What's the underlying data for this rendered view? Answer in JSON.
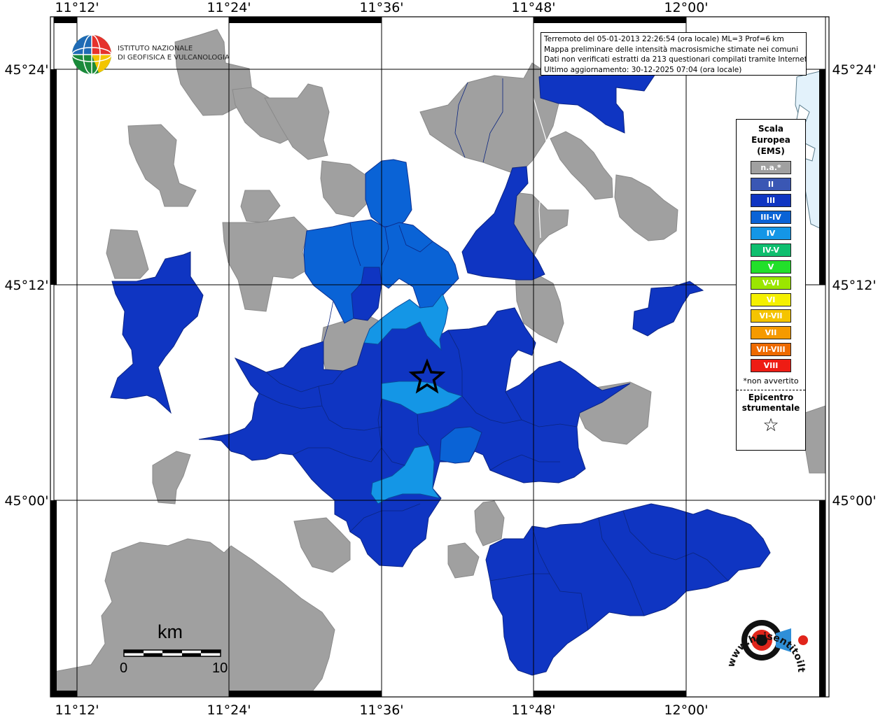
{
  "info": {
    "line1": "Terremoto del 05-01-2013 22:26:54 (ora locale) ML=3 Prof=6 km",
    "line2": "Mappa preliminare delle intensità macrosismiche stimate nei comuni",
    "line3": "Dati non verificati estratti da 213 questionari compilati tramite Internet.",
    "line4": "Ultimo aggiornamento: 30-12-2025 07:04 (ora locale)"
  },
  "logo": {
    "line1": "ISTITUTO NAZIONALE",
    "line2": "DI GEOFISICA E VULCANOLOGIA"
  },
  "axes": {
    "lon_labels": [
      "11°12'",
      "11°24'",
      "11°36'",
      "11°48'",
      "12°00'"
    ],
    "lat_labels": [
      "45°24'",
      "45°12'",
      "45°00'"
    ]
  },
  "legend": {
    "title_line1": "Scala",
    "title_line2": "Europea",
    "title_line3": "(EMS)",
    "items": [
      {
        "label": "n.a.*",
        "color": "#a0a0a0"
      },
      {
        "label": "II",
        "color": "#3a57b4"
      },
      {
        "label": "III",
        "color": "#0f35c2"
      },
      {
        "label": "III-IV",
        "color": "#0a63d6"
      },
      {
        "label": "IV",
        "color": "#1496e6"
      },
      {
        "label": "IV-V",
        "color": "#0fbf6f"
      },
      {
        "label": "V",
        "color": "#22e02a"
      },
      {
        "label": "V-VI",
        "color": "#9be600"
      },
      {
        "label": "VI",
        "color": "#f4f000"
      },
      {
        "label": "VI-VII",
        "color": "#f5c400"
      },
      {
        "label": "VII",
        "color": "#f59a00"
      },
      {
        "label": "VII-VIII",
        "color": "#ee6a00"
      },
      {
        "label": "VIII",
        "color": "#ee1c14"
      }
    ],
    "note": "*non avvertito",
    "epicenter_line1": "Epicentro",
    "epicenter_line2": "strumentale",
    "epicenter_symbol": "☆"
  },
  "scale_bar": {
    "unit": "km",
    "start": "0",
    "end": "10"
  },
  "site_logo": {
    "text": "www.haisentitoilterremoto.it"
  },
  "colors": {
    "na": "#a0a0a0",
    "iii": "#0f35c2",
    "iii_iv": "#0a63d6",
    "iv": "#1496e6",
    "sea": "#dff0fa"
  }
}
